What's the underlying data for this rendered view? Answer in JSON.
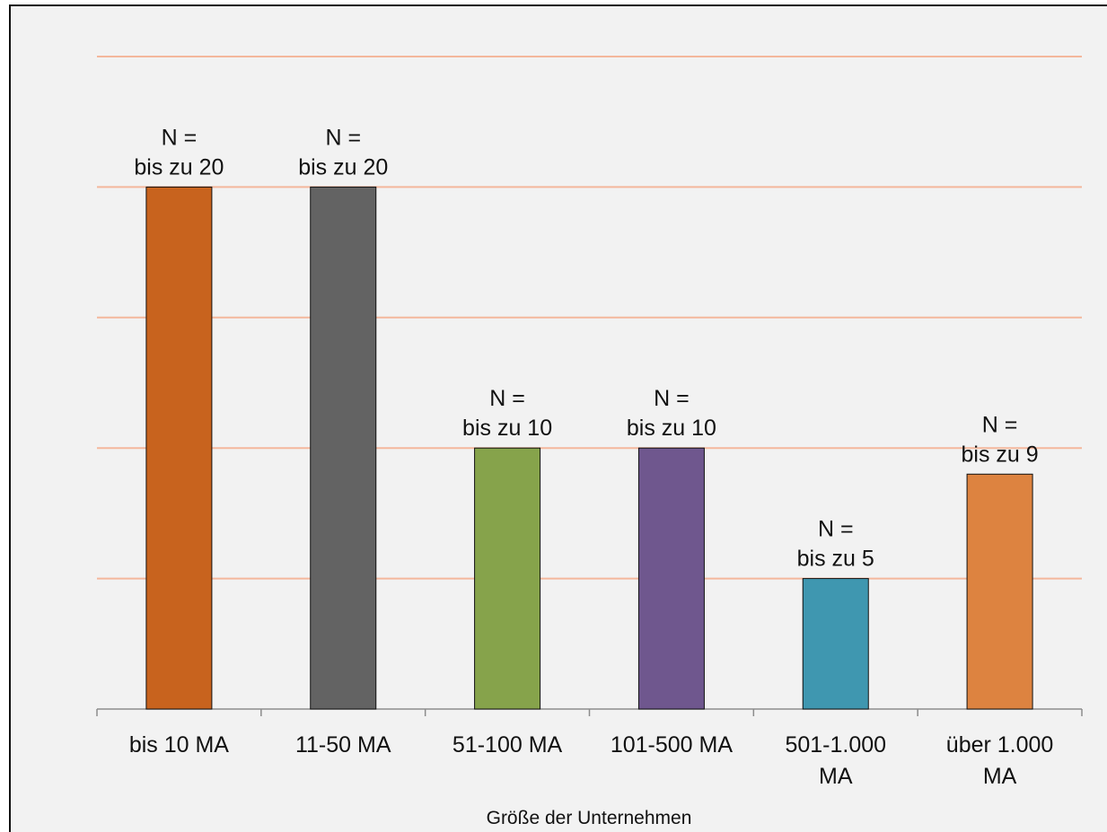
{
  "chart_data": {
    "type": "bar",
    "title": "",
    "xlabel": "Größe der Unternehmen",
    "ylabel": "",
    "ylim": [
      0,
      25
    ],
    "yticks": [
      5,
      10,
      15,
      20,
      25
    ],
    "grid": true,
    "grid_color": "#f4b79c",
    "categories": [
      [
        "bis 10 MA"
      ],
      [
        "11-50 MA"
      ],
      [
        "51-100 MA"
      ],
      [
        "101-500 MA"
      ],
      [
        "501-1.000",
        "MA"
      ],
      [
        "über 1.000",
        "MA"
      ]
    ],
    "values": [
      20,
      20,
      10,
      10,
      5,
      9
    ],
    "bar_colors": [
      "#c8631e",
      "#636363",
      "#86a34b",
      "#6f578e",
      "#3f97b0",
      "#dd8340"
    ],
    "data_labels": [
      [
        "N =",
        "bis zu 20"
      ],
      [
        "N =",
        "bis zu 20"
      ],
      [
        "N =",
        "bis zu 10"
      ],
      [
        "N =",
        "bis zu 10"
      ],
      [
        "N =",
        "bis zu 5"
      ],
      [
        "N =",
        "bis zu 9"
      ]
    ]
  }
}
